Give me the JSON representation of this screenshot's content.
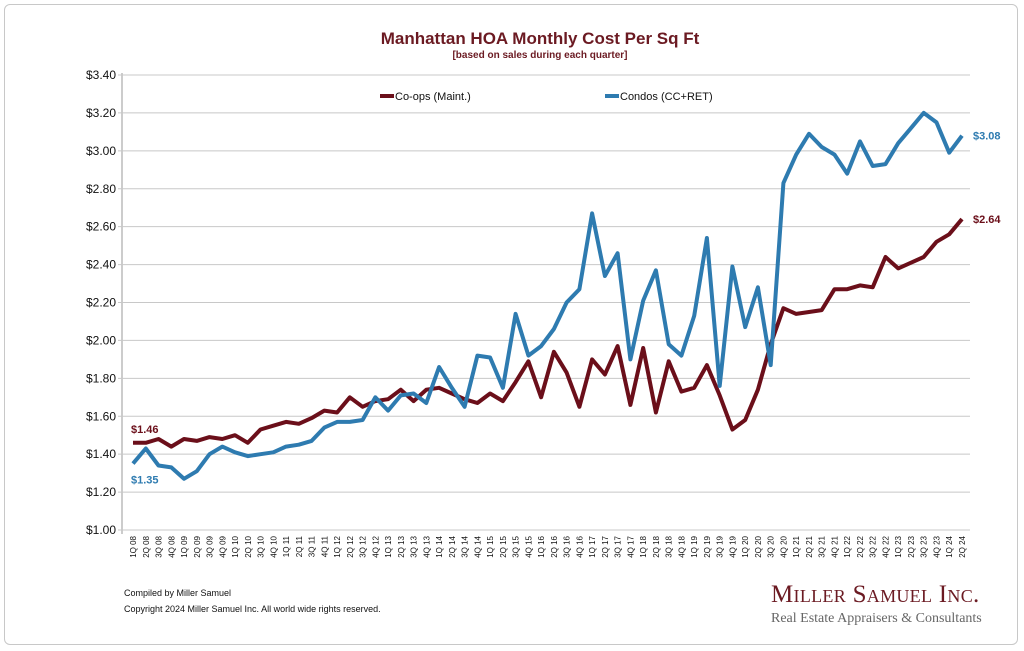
{
  "chart_data": {
    "type": "line",
    "title": "Manhattan HOA Monthly Cost Per Sq Ft",
    "subtitle": "[based on sales during each quarter]",
    "xlabel": "",
    "ylabel": "",
    "ylim": [
      1.0,
      3.4
    ],
    "ytick_step": 0.2,
    "grid": true,
    "legend_position": "top-center",
    "categories": [
      "1Q 08",
      "2Q 08",
      "3Q 08",
      "4Q 08",
      "1Q 09",
      "2Q 09",
      "3Q 09",
      "4Q 09",
      "1Q 10",
      "2Q 10",
      "3Q 10",
      "4Q 10",
      "1Q 11",
      "2Q 11",
      "3Q 11",
      "4Q 11",
      "1Q 12",
      "2Q 12",
      "3Q 12",
      "4Q 12",
      "1Q 13",
      "2Q 13",
      "3Q 13",
      "4Q 13",
      "1Q 14",
      "2Q 14",
      "3Q 14",
      "4Q 14",
      "1Q 15",
      "2Q 15",
      "3Q 15",
      "4Q 15",
      "1Q 16",
      "2Q 16",
      "3Q 16",
      "4Q 16",
      "1Q 17",
      "2Q 17",
      "3Q 17",
      "4Q 17",
      "1Q 18",
      "2Q 18",
      "3Q 18",
      "4Q 18",
      "1Q 19",
      "2Q 19",
      "3Q 19",
      "4Q 19",
      "1Q 20",
      "2Q 20",
      "3Q 20",
      "4Q 20",
      "1Q 21",
      "2Q 21",
      "3Q 21",
      "4Q 21",
      "1Q 22",
      "2Q 22",
      "3Q 22",
      "4Q 22",
      "1Q 23",
      "2Q 23",
      "3Q 23",
      "4Q 23",
      "1Q 24",
      "2Q 24"
    ],
    "series": [
      {
        "name": "Co-ops (Maint.)",
        "color": "#6b0f1a",
        "start_label": "$1.46",
        "end_label": "$2.64",
        "values": [
          1.46,
          1.46,
          1.48,
          1.44,
          1.48,
          1.47,
          1.49,
          1.48,
          1.5,
          1.46,
          1.53,
          1.55,
          1.57,
          1.56,
          1.59,
          1.63,
          1.62,
          1.7,
          1.65,
          1.68,
          1.69,
          1.74,
          1.68,
          1.74,
          1.75,
          1.72,
          1.69,
          1.67,
          1.72,
          1.68,
          1.78,
          1.89,
          1.7,
          1.94,
          1.83,
          1.65,
          1.9,
          1.82,
          1.97,
          1.66,
          1.96,
          1.62,
          1.89,
          1.73,
          1.75,
          1.87,
          1.71,
          1.53,
          1.58,
          1.74,
          1.98,
          2.17,
          2.14,
          2.15,
          2.16,
          2.27,
          2.27,
          2.29,
          2.28,
          2.44,
          2.38,
          2.41,
          2.44,
          2.52,
          2.56,
          2.64
        ]
      },
      {
        "name": "Condos (CC+RET)",
        "color": "#2e7bb0",
        "start_label": "$1.35",
        "end_label": "$3.08",
        "values": [
          1.35,
          1.43,
          1.34,
          1.33,
          1.27,
          1.31,
          1.4,
          1.44,
          1.41,
          1.39,
          1.4,
          1.41,
          1.44,
          1.45,
          1.47,
          1.54,
          1.57,
          1.57,
          1.58,
          1.7,
          1.63,
          1.71,
          1.72,
          1.67,
          1.86,
          1.75,
          1.65,
          1.92,
          1.91,
          1.75,
          2.14,
          1.92,
          1.97,
          2.06,
          2.2,
          2.27,
          2.67,
          2.34,
          2.46,
          1.9,
          2.21,
          2.37,
          1.98,
          1.92,
          2.13,
          2.54,
          1.76,
          2.39,
          2.07,
          2.28,
          1.87,
          2.83,
          2.98,
          3.09,
          3.02,
          2.98,
          2.88,
          3.05,
          2.92,
          2.93,
          3.04,
          3.12,
          3.2,
          3.15,
          2.99,
          3.08
        ]
      }
    ],
    "yticks": [
      "$1.00",
      "$1.20",
      "$1.40",
      "$1.60",
      "$1.80",
      "$2.00",
      "$2.20",
      "$2.40",
      "$2.60",
      "$2.80",
      "$3.00",
      "$3.20",
      "$3.40"
    ]
  },
  "footer": {
    "compiled": "Compiled by Miller Samuel",
    "copyright": "Copyright 2024 Miller Samuel Inc.  All world wide rights reserved."
  },
  "logo": {
    "name": "Miller Samuel Inc.",
    "tagline": "Real Estate Appraisers & Consultants"
  },
  "colors": {
    "title": "#6b1a22",
    "grid": "#c8c8c8"
  }
}
